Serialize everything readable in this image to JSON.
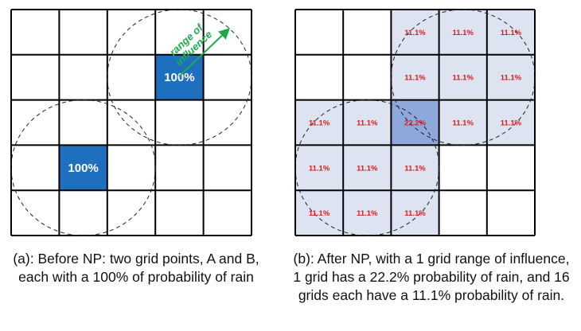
{
  "panel_a": {
    "cells_100": [
      {
        "row": 1,
        "col": 3,
        "label": "100%"
      },
      {
        "row": 3,
        "col": 1,
        "label": "100%"
      }
    ],
    "annotation": {
      "line1": "range of",
      "line2": "influence"
    },
    "caption": "(a): Before NP: two grid points, A and B, each with a 100% of probability of rain"
  },
  "panel_b": {
    "cells": [
      {
        "row": 0,
        "col": 2,
        "label": "11.1%"
      },
      {
        "row": 0,
        "col": 3,
        "label": "11.1%"
      },
      {
        "row": 0,
        "col": 4,
        "label": "11.1%"
      },
      {
        "row": 1,
        "col": 2,
        "label": "11.1%"
      },
      {
        "row": 1,
        "col": 3,
        "label": "11.1%"
      },
      {
        "row": 1,
        "col": 4,
        "label": "11.1%"
      },
      {
        "row": 2,
        "col": 0,
        "label": "11.1%"
      },
      {
        "row": 2,
        "col": 1,
        "label": "11.1%"
      },
      {
        "row": 2,
        "col": 2,
        "label": "22.2%",
        "highlight": true
      },
      {
        "row": 2,
        "col": 3,
        "label": "11.1%"
      },
      {
        "row": 2,
        "col": 4,
        "label": "11.1%"
      },
      {
        "row": 3,
        "col": 0,
        "label": "11.1%"
      },
      {
        "row": 3,
        "col": 1,
        "label": "11.1%"
      },
      {
        "row": 3,
        "col": 2,
        "label": "11.1%"
      },
      {
        "row": 4,
        "col": 0,
        "label": "11.1%"
      },
      {
        "row": 4,
        "col": 1,
        "label": "11.1%"
      },
      {
        "row": 4,
        "col": 2,
        "label": "11.1%"
      }
    ],
    "caption": "(b): After NP, with a 1 grid range of influence, 1 grid has a 22.2% probability of rain, and 16 grids each have a 11.1% probability of rain."
  },
  "colors": {
    "grid_line": "#000000",
    "cell_100": "#1f6fbf",
    "cell_light": "#dde3f1",
    "cell_center": "#8ea8dc",
    "percent_text": "#e01b1b",
    "annotation": "#1faa4e"
  }
}
